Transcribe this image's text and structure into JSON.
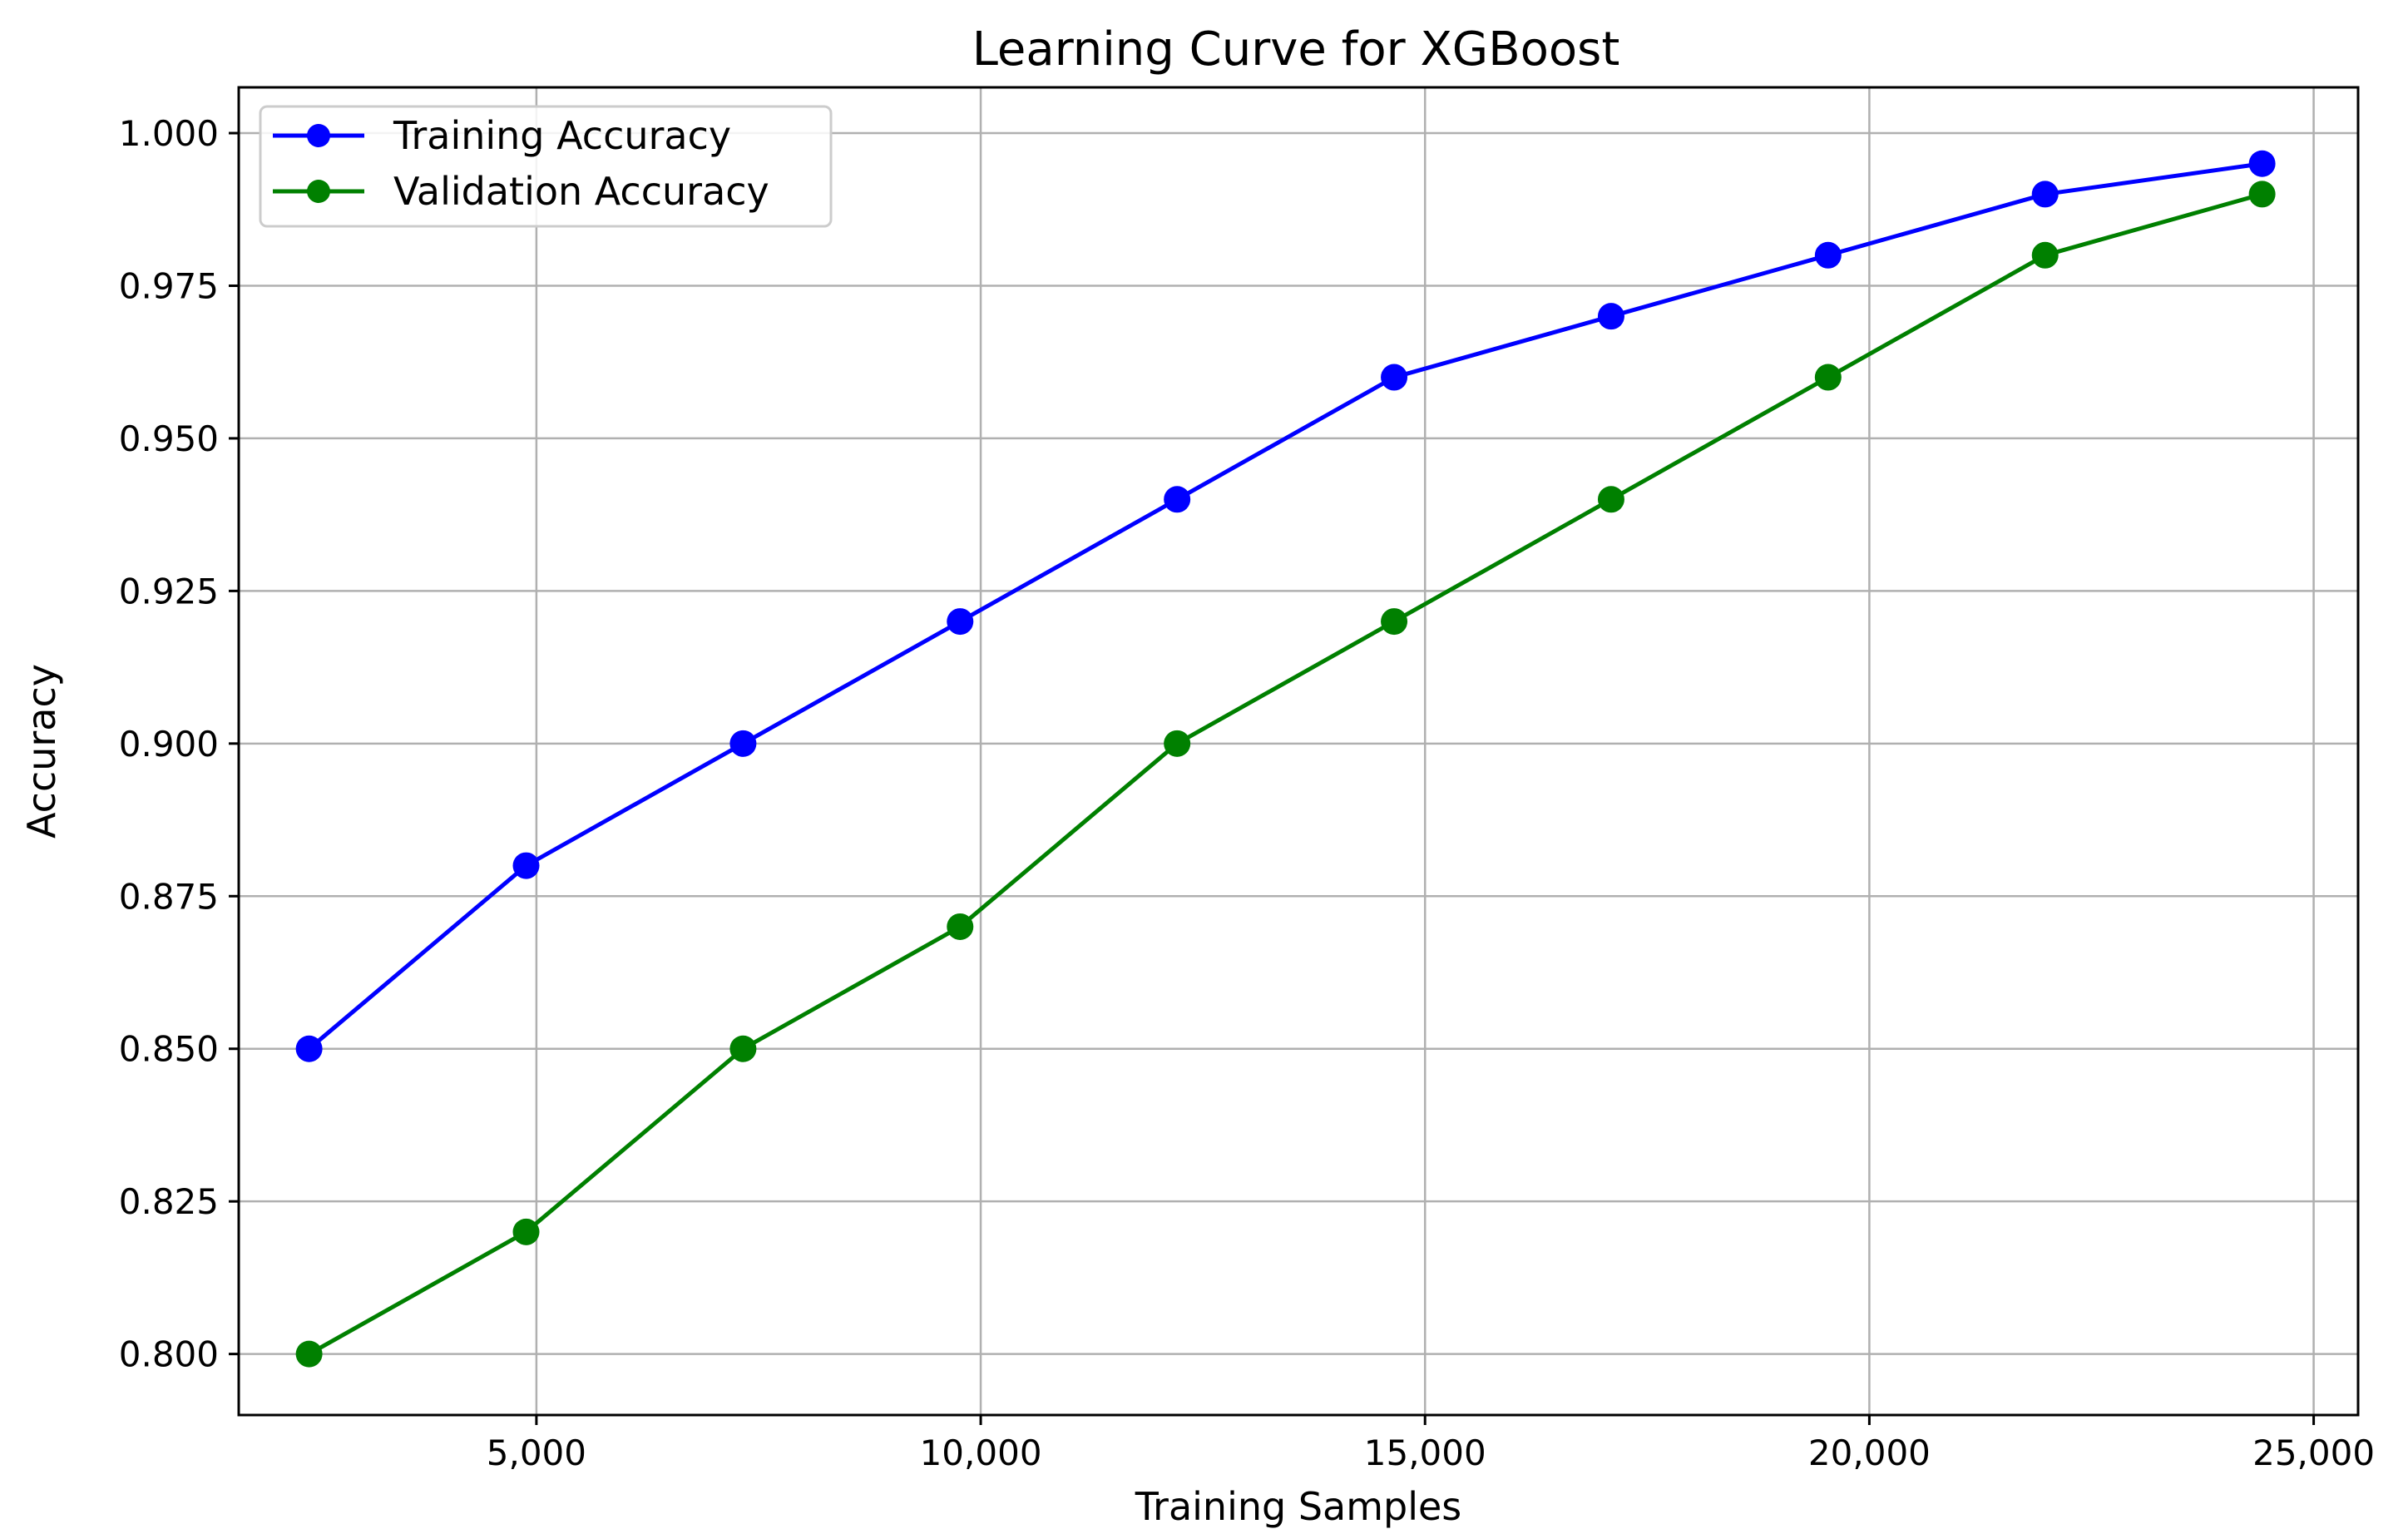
{
  "chart_data": {
    "type": "line",
    "title": "Learning Curve for XGBoost",
    "xlabel": "Training Samples",
    "ylabel": "Accuracy",
    "xlim": [
      1650,
      25500
    ],
    "ylim": [
      0.79,
      1.0075
    ],
    "x_ticks": [
      5000,
      10000,
      15000,
      20000,
      25000
    ],
    "x_tick_labels": [
      "5,000",
      "10,000",
      "15,000",
      "20,000",
      "25,000"
    ],
    "y_ticks": [
      0.8,
      0.825,
      0.85,
      0.875,
      0.9,
      0.925,
      0.95,
      0.975,
      1.0
    ],
    "y_tick_labels": [
      "0.800",
      "0.825",
      "0.850",
      "0.875",
      "0.900",
      "0.925",
      "0.950",
      "0.975",
      "1.000"
    ],
    "grid": true,
    "legend_position": "upper-left",
    "x": [
      2442,
      4884,
      7326,
      9768,
      12210,
      14652,
      17094,
      19536,
      21978,
      24420
    ],
    "series": [
      {
        "name": "Training Accuracy",
        "color": "#0000ff",
        "marker": "circle",
        "values": [
          0.85,
          0.88,
          0.9,
          0.92,
          0.94,
          0.96,
          0.97,
          0.98,
          0.99,
          0.995
        ]
      },
      {
        "name": "Validation Accuracy",
        "color": "#008000",
        "marker": "circle",
        "values": [
          0.8,
          0.82,
          0.85,
          0.87,
          0.9,
          0.92,
          0.94,
          0.96,
          0.98,
          0.99
        ]
      }
    ]
  }
}
